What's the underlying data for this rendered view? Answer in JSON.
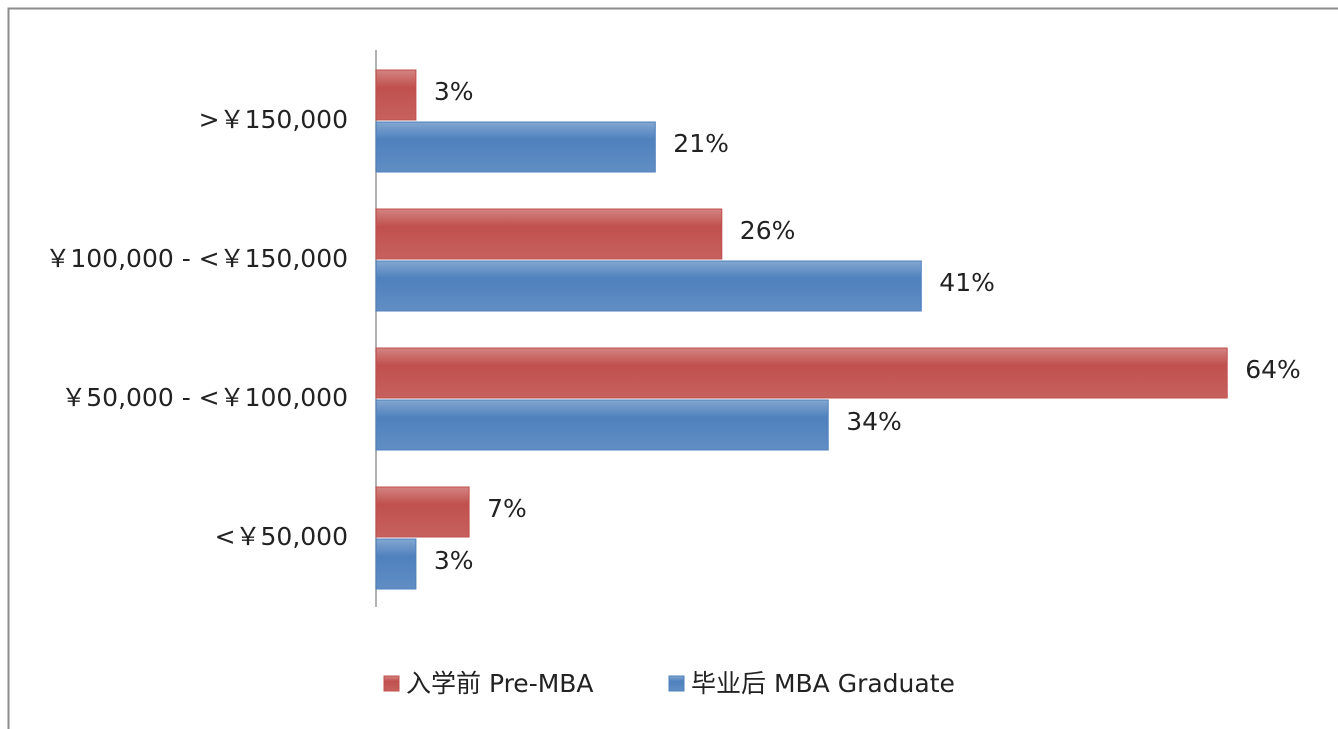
{
  "chart_data": {
    "type": "hbar",
    "categories": [
      ">￥150,000",
      "￥100,000 - <￥150,000",
      "￥50,000 - <￥100,000",
      "<￥50,000"
    ],
    "series": [
      {
        "name": "入学前 Pre-MBA",
        "color": "#c0504d",
        "values": [
          3,
          26,
          64,
          7
        ],
        "value_labels": [
          "3%",
          "26%",
          "64%",
          "7%"
        ]
      },
      {
        "name": "毕业后 MBA Graduate",
        "color": "#4f81bd",
        "values": [
          21,
          41,
          34,
          3
        ],
        "value_labels": [
          "21%",
          "41%",
          "34%",
          "3%"
        ]
      }
    ],
    "legend": "bottom"
  }
}
